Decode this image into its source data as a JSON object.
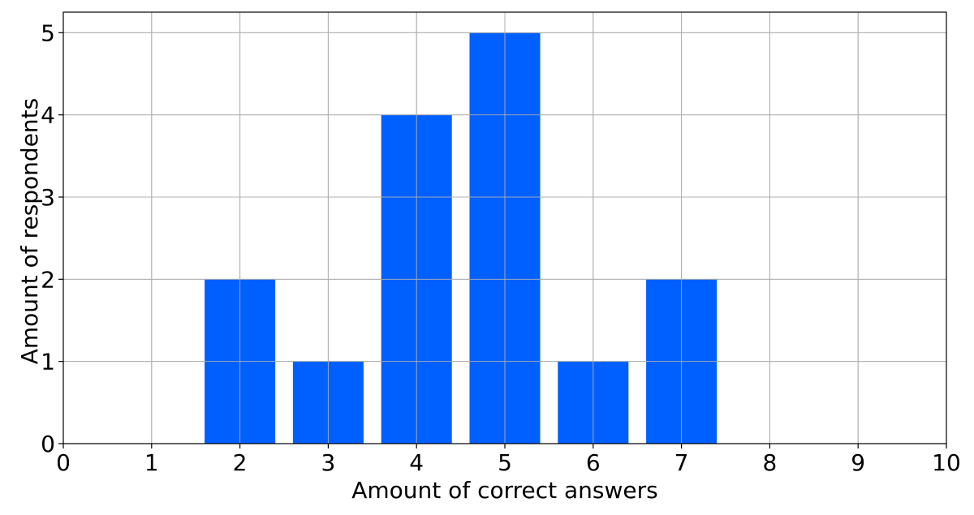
{
  "chart_data": {
    "type": "bar",
    "title": "",
    "xlabel": "Amount of correct answers",
    "ylabel": "Amount of respondents",
    "x": [
      2,
      3,
      4,
      5,
      6,
      7
    ],
    "values": [
      2,
      1,
      4,
      5,
      1,
      2
    ],
    "xlim": [
      0,
      10
    ],
    "ylim": [
      0,
      5.25
    ],
    "xticks": [
      0,
      1,
      2,
      3,
      4,
      5,
      6,
      7,
      8,
      9,
      10
    ],
    "yticks": [
      0,
      1,
      2,
      3,
      4,
      5
    ],
    "bar_width": 0.8,
    "grid": true,
    "colors": {
      "bar": "#005fff",
      "grid": "#b0b0b0",
      "axis": "#000000"
    }
  }
}
